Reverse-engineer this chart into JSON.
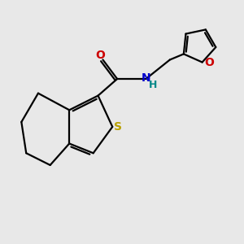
{
  "background_color": "#e8e8e8",
  "bond_color": "#000000",
  "atom_colors": {
    "S": "#b8a000",
    "O": "#cc0000",
    "N": "#0000cc",
    "H": "#008888"
  },
  "bond_width": 1.6,
  "figsize": [
    3.0,
    3.0
  ],
  "dpi": 100
}
